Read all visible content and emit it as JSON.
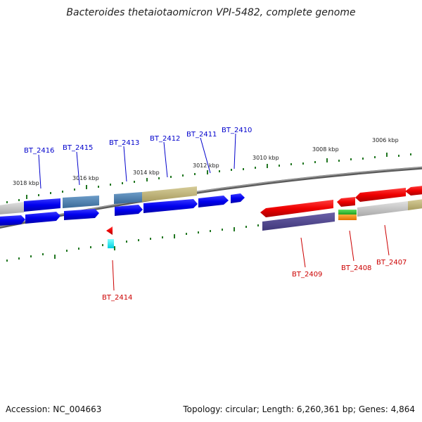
{
  "title": "Bacteroides thetaiotaomicron VPI-5482, complete genome",
  "footer": {
    "accession": "Accession: NC_004663",
    "summary": "Topology: circular; Length: 6,260,361 bp; Genes: 4,864"
  },
  "colors": {
    "forward_label": "#0000cc",
    "reverse_label": "#cc0000",
    "tick_mark": "#227722",
    "backbone": "#777777"
  },
  "scale_ticks": [
    "3018 kbp",
    "3016 kbp",
    "3014 kbp",
    "3012 kbp",
    "3010 kbp",
    "3008 kbp",
    "3006 kbp"
  ],
  "genes_forward": [
    "BT_2416",
    "BT_2415",
    "BT_2413",
    "BT_2412",
    "BT_2411",
    "BT_2410"
  ],
  "genes_reverse": [
    "BT_2414",
    "BT_2409",
    "BT_2408",
    "BT_2407"
  ]
}
